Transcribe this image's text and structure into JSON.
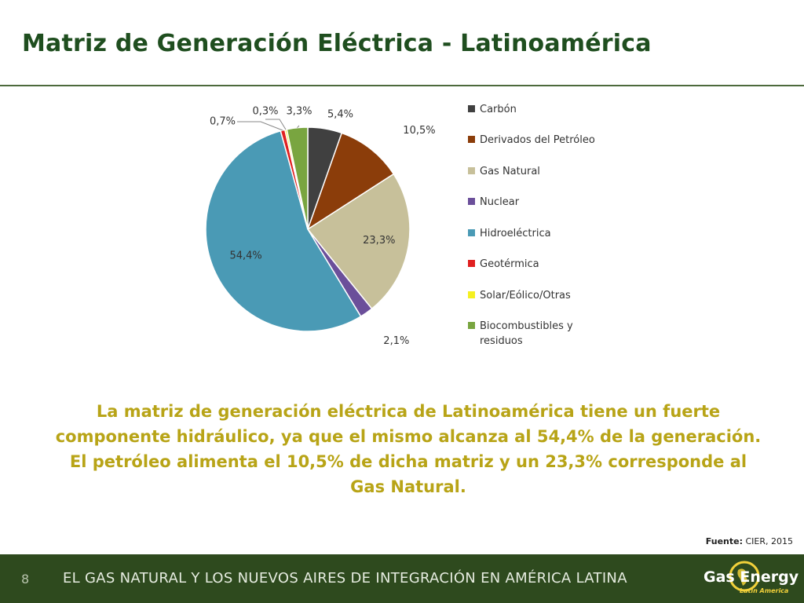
{
  "header": {
    "title": "Matriz de Generación Eléctrica - Latinoamérica"
  },
  "chart_data": {
    "type": "pie",
    "categories": [
      "Carbón",
      "Derivados del Petróleo",
      "Gas Natural",
      "Nuclear",
      "Hidroeléctrica",
      "Geotérmica",
      "Solar/Eólico/Otras",
      "Biocombustibles y residuos"
    ],
    "values": [
      5.4,
      10.5,
      23.3,
      2.1,
      54.4,
      0.7,
      0.3,
      3.3
    ],
    "value_labels": [
      "5,4%",
      "10,5%",
      "23,3%",
      "2,1%",
      "54,4%",
      "0,7%",
      "0,3%",
      "3,3%"
    ],
    "colors": [
      "#404040",
      "#8b3d0a",
      "#c7c09a",
      "#6b4f9a",
      "#4a9ab5",
      "#e02020",
      "#f5f020",
      "#79a540"
    ],
    "legend_position": "right"
  },
  "legend": {
    "items": [
      {
        "label": "Carbón",
        "color": "#404040"
      },
      {
        "label": "Derivados del Petróleo",
        "color": "#8b3d0a"
      },
      {
        "label": "Gas Natural",
        "color": "#c7c09a"
      },
      {
        "label": "Nuclear",
        "color": "#6b4f9a"
      },
      {
        "label": "Hidroeléctrica",
        "color": "#4a9ab5"
      },
      {
        "label": "Geotérmica",
        "color": "#e02020"
      },
      {
        "label": "Solar/Eólico/Otras",
        "color": "#f5f020"
      },
      {
        "label": "Biocombustibles y residuos",
        "color": "#79a540"
      }
    ]
  },
  "note": "La matriz de generación eléctrica de Latinoamérica tiene un fuerte componente hidráulico, ya que el mismo alcanza al 54,4% de la generación. El petróleo alimenta el 10,5% de dicha matriz y un 23,3% corresponde al Gas Natural.",
  "source": {
    "label": "Fuente:",
    "value": "CIER, 2015"
  },
  "footer": {
    "page_number": "8",
    "text": "EL GAS NATURAL Y LOS NUEVOS AIRES DE INTEGRACIÓN EN AMÉRICA LATINA",
    "logo_name": "Gas Energy",
    "logo_sub": "Latin America",
    "logo_icon": "globe-icon",
    "logo_color": "#f2d13a"
  }
}
